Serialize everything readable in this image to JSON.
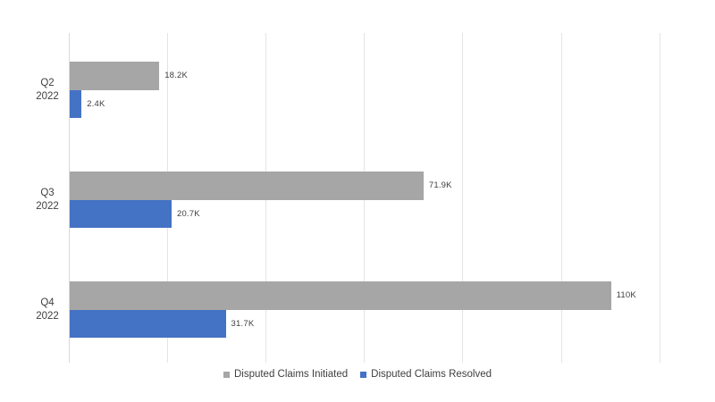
{
  "chart_data": {
    "type": "bar",
    "orientation": "horizontal",
    "title": "",
    "categories": [
      "Q2 2022",
      "Q3 2022",
      "Q4 2022"
    ],
    "category_display": [
      [
        "Q2",
        "2022"
      ],
      [
        "Q3",
        "2022"
      ],
      [
        "Q4",
        "2022"
      ]
    ],
    "series": [
      {
        "name": "Disputed Claims Initiated",
        "color": "#a6a6a6",
        "values": [
          18200,
          71900,
          110000
        ],
        "data_labels": [
          "18.2K",
          "71.9K",
          "110K"
        ]
      },
      {
        "name": "Disputed Claims Resolved",
        "color": "#4472c4",
        "values": [
          2400,
          20700,
          31700
        ],
        "data_labels": [
          "2.4K",
          "20.7K",
          "31.7K"
        ]
      }
    ],
    "xlim": [
      0,
      120000
    ],
    "x_ticks": [
      0,
      20000,
      40000,
      60000,
      80000,
      100000,
      120000
    ],
    "x_tick_labels_visible": false,
    "grid": "vertical",
    "legend_position": "bottom",
    "colors": {
      "gridline": "#e4e4e4",
      "axis_line": "#d9d9d9",
      "label_text": "#404040",
      "background": "#ffffff"
    }
  }
}
